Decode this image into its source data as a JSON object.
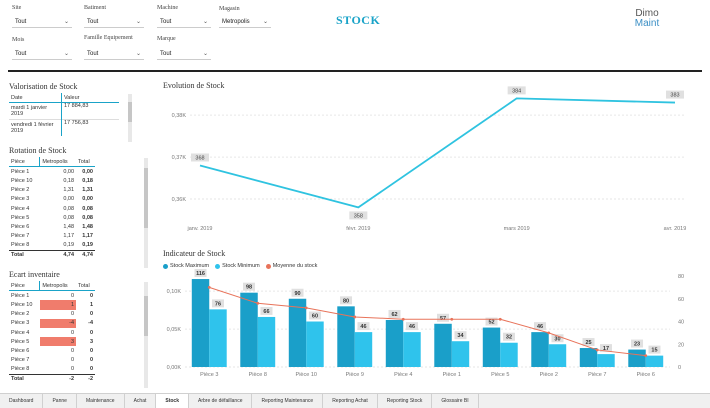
{
  "filters": [
    {
      "label": "Site",
      "value": "Tout"
    },
    {
      "label": "Batiment",
      "value": "Tout"
    },
    {
      "label": "Machine",
      "value": "Tout"
    },
    {
      "label": "Magasin",
      "value": "Metropolis"
    },
    {
      "label": "Mois",
      "value": "Tout"
    },
    {
      "label": "Famille Equipement",
      "value": "Tout"
    },
    {
      "label": "Marque",
      "value": "Tout"
    }
  ],
  "page_title": "STOCK",
  "logo": {
    "line1": "Dimo",
    "line2": "Maint"
  },
  "valorisation": {
    "title": "Valorisation de Stock",
    "headers": [
      "Date",
      "Valeur"
    ],
    "rows": [
      [
        "mardi 1 janvier 2019",
        "17 884,83"
      ],
      [
        "vendredi 1 février 2019",
        "17 756,83"
      ]
    ]
  },
  "rotation": {
    "title": "Rotation de Stock",
    "headers": [
      "Pièce",
      "Metropolis",
      "Total"
    ],
    "rows": [
      [
        "Pièce 1",
        "0,00",
        "0,00"
      ],
      [
        "Pièce 10",
        "0,18",
        "0,18"
      ],
      [
        "Pièce 2",
        "1,31",
        "1,31"
      ],
      [
        "Pièce 3",
        "0,00",
        "0,00"
      ],
      [
        "Pièce 4",
        "0,08",
        "0,08"
      ],
      [
        "Pièce 5",
        "0,08",
        "0,08"
      ],
      [
        "Pièce 6",
        "1,48",
        "1,48"
      ],
      [
        "Pièce 7",
        "1,17",
        "1,17"
      ],
      [
        "Pièce 8",
        "0,19",
        "0,19"
      ]
    ],
    "total": [
      "Total",
      "4,74",
      "4,74"
    ]
  },
  "ecart": {
    "title": "Ecart inventaire",
    "headers": [
      "Pièce",
      "Metropolis",
      "Total"
    ],
    "rows": [
      [
        "Pièce 1",
        "0",
        "0"
      ],
      [
        "Pièce 10",
        "1",
        "1"
      ],
      [
        "Pièce 2",
        "0",
        "0"
      ],
      [
        "Pièce 3",
        "-4",
        "-4"
      ],
      [
        "Pièce 4",
        "0",
        "0"
      ],
      [
        "Pièce 5",
        "3",
        "3"
      ],
      [
        "Pièce 6",
        "0",
        "0"
      ],
      [
        "Pièce 7",
        "0",
        "0"
      ],
      [
        "Pièce 8",
        "0",
        "0"
      ]
    ],
    "total": [
      "Total",
      "-2",
      "-2"
    ]
  },
  "evolution": {
    "title": "Evolution de Stock",
    "y_ticks": [
      "0,38K",
      "0,37K",
      "0,36K"
    ],
    "x_labels": [
      "janv. 2019",
      "févr. 2019",
      "mars 2019",
      "avr. 2019"
    ],
    "labels": [
      "368",
      "358",
      "384",
      "383"
    ]
  },
  "indicateur": {
    "title": "Indicateur de Stock",
    "legend": [
      "Stock Maximum",
      "Stock Minimum",
      "Moyenne du stock"
    ],
    "y_left": [
      "0,10K",
      "0,05K",
      "0,00K"
    ],
    "y_right": [
      "80",
      "60",
      "40",
      "20",
      "0"
    ]
  },
  "chart_data": [
    {
      "type": "line",
      "title": "Evolution de Stock",
      "x": [
        "janv. 2019",
        "févr. 2019",
        "mars 2019",
        "avr. 2019"
      ],
      "series": [
        {
          "values": [
            368,
            358,
            384,
            383
          ]
        }
      ],
      "ylim": [
        355,
        386
      ],
      "grid": true
    },
    {
      "type": "bar",
      "title": "Indicateur de Stock",
      "categories": [
        "Pièce 3",
        "Pièce 8",
        "Pièce 10",
        "Pièce 9",
        "Pièce 4",
        "Pièce 1",
        "Pièce 5",
        "Pièce 2",
        "Pièce 7",
        "Pièce 6"
      ],
      "series": [
        {
          "name": "Stock Maximum",
          "values": [
            116,
            98,
            90,
            80,
            62,
            57,
            52,
            46,
            25,
            23
          ]
        },
        {
          "name": "Stock Minimum",
          "values": [
            76,
            66,
            60,
            46,
            46,
            34,
            32,
            30,
            17,
            15
          ]
        },
        {
          "name": "Moyenne du stock",
          "values": [
            70,
            56,
            52,
            44,
            42,
            42,
            42,
            30,
            15,
            10
          ],
          "axis": "right"
        }
      ],
      "ylim": [
        0,
        120
      ],
      "ylim_right": [
        0,
        80
      ],
      "legend": "top-left",
      "colors": {
        "max": "#1a9fc9",
        "min": "#2fc3ec",
        "avg": "#e8735a"
      }
    }
  ],
  "tabs": [
    "Dashboard",
    "Panne",
    "Maintenance",
    "Achat",
    "Stock",
    "Arbre de défaillance",
    "Reporting Maintenance",
    "Reporting Achat",
    "Reporting Stock",
    "Glossaire BI"
  ],
  "active_tab": "Stock"
}
